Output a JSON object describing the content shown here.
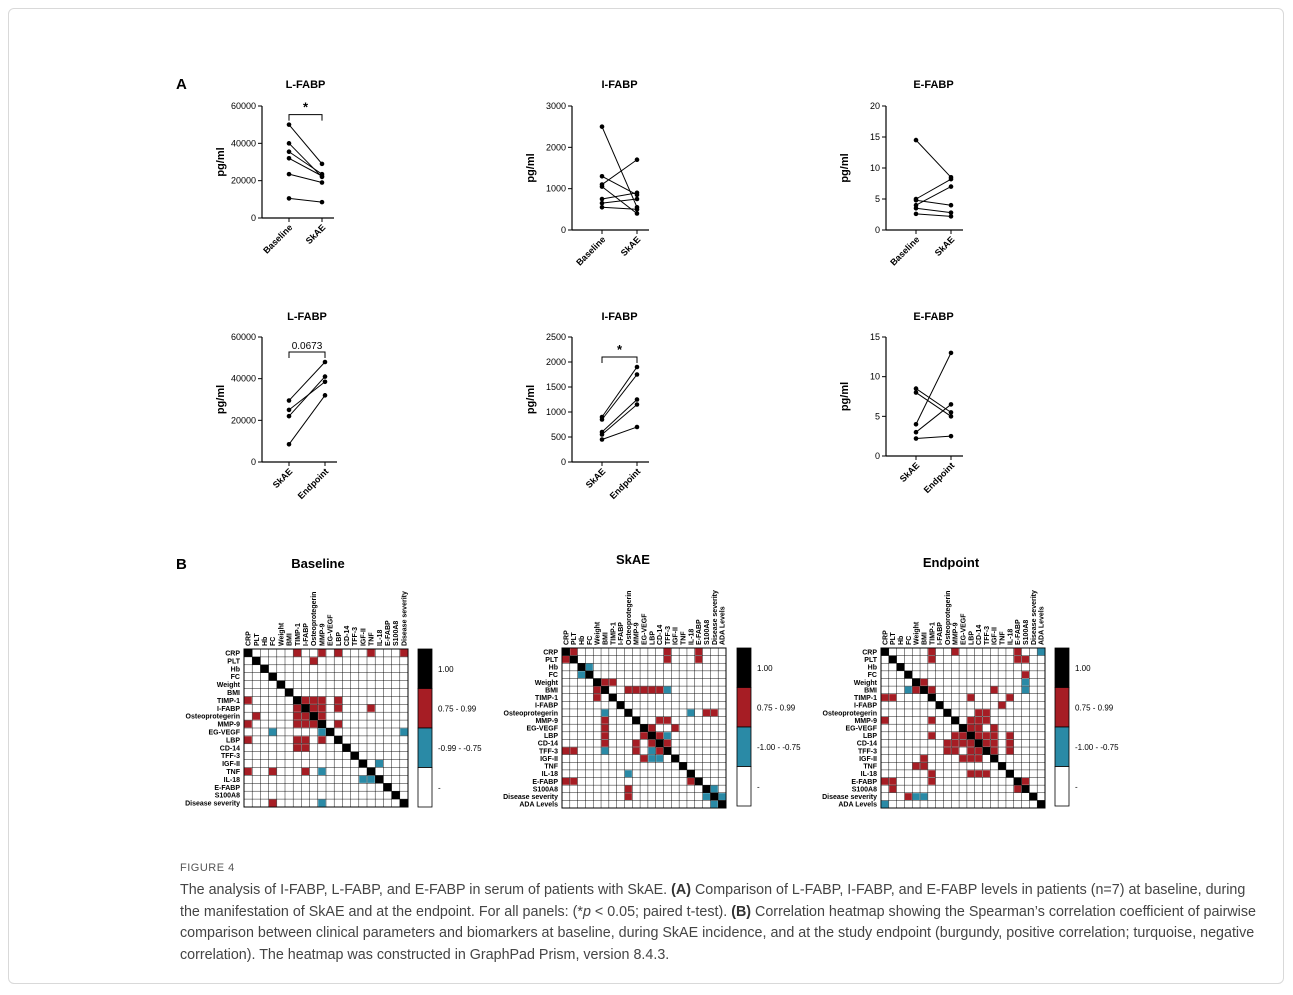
{
  "panel_labels": {
    "a": "A",
    "b": "B"
  },
  "colors": {
    "positive": "#a61d24",
    "negative": "#2a8aa6",
    "perfect": "#000000",
    "none": "#ffffff"
  },
  "chart_data": [
    {
      "type": "line",
      "title": "L-FABP",
      "ylabel": "pg/ml",
      "categories": [
        "Baseline",
        "SkAE"
      ],
      "ylim": [
        0,
        60000
      ],
      "yticks": [
        0,
        20000,
        40000,
        60000
      ],
      "sig": "*",
      "pairs": [
        [
          50000,
          29000
        ],
        [
          40000,
          22000
        ],
        [
          35500,
          23500
        ],
        [
          32000,
          22500
        ],
        [
          23500,
          19000
        ],
        [
          10500,
          8500
        ]
      ]
    },
    {
      "type": "line",
      "title": "I-FABP",
      "ylabel": "pg/ml",
      "categories": [
        "Baseline",
        "SkAE"
      ],
      "ylim": [
        0,
        3000
      ],
      "yticks": [
        0,
        1000,
        2000,
        3000
      ],
      "pairs": [
        [
          2500,
          550
        ],
        [
          1300,
          850
        ],
        [
          1100,
          1700
        ],
        [
          1050,
          400
        ],
        [
          750,
          900
        ],
        [
          650,
          750
        ],
        [
          550,
          500
        ]
      ]
    },
    {
      "type": "line",
      "title": "E-FABP",
      "ylabel": "pg/ml",
      "categories": [
        "Baseline",
        "SkAE"
      ],
      "ylim": [
        0,
        20
      ],
      "yticks": [
        0,
        5,
        10,
        15,
        20
      ],
      "pairs": [
        [
          14.5,
          8.5
        ],
        [
          5,
          8.2
        ],
        [
          4.8,
          4
        ],
        [
          4,
          7
        ],
        [
          3.5,
          2.8
        ],
        [
          2.6,
          2.2
        ]
      ]
    },
    {
      "type": "line",
      "title": "L-FABP",
      "ylabel": "pg/ml",
      "categories": [
        "SkAE",
        "Endpoint"
      ],
      "ylim": [
        0,
        60000
      ],
      "yticks": [
        0,
        20000,
        40000,
        60000
      ],
      "sig": "0.0673",
      "pairs": [
        [
          29500,
          48000
        ],
        [
          25000,
          38500
        ],
        [
          22000,
          41000
        ],
        [
          8500,
          32000
        ]
      ]
    },
    {
      "type": "line",
      "title": "I-FABP",
      "ylabel": "pg/ml",
      "categories": [
        "SkAE",
        "Endpoint"
      ],
      "ylim": [
        0,
        2500
      ],
      "yticks": [
        0,
        500,
        1000,
        1500,
        2000,
        2500
      ],
      "sig": "*",
      "pairs": [
        [
          900,
          1900
        ],
        [
          850,
          1750
        ],
        [
          600,
          1250
        ],
        [
          550,
          1150
        ],
        [
          450,
          700
        ]
      ]
    },
    {
      "type": "line",
      "title": "E-FABP",
      "ylabel": "pg/ml",
      "categories": [
        "SkAE",
        "Endpoint"
      ],
      "ylim": [
        0,
        15
      ],
      "yticks": [
        0,
        5,
        10,
        15
      ],
      "pairs": [
        [
          8.5,
          5.5
        ],
        [
          8,
          5
        ],
        [
          4,
          13
        ],
        [
          3,
          6.5
        ],
        [
          2.2,
          2.5
        ]
      ]
    },
    {
      "type": "heatmap",
      "title": "Baseline",
      "labels": [
        "CRP",
        "PLT",
        "Hb",
        "FC",
        "Weight",
        "BMI",
        "TIMP-1",
        "I-FABP",
        "Osteoprotegerin",
        "MMP-9",
        "EG-VEGF",
        "LBP",
        "CD-14",
        "TFF-3",
        "IGF-II",
        "TNF",
        "IL-18",
        "E-FABP",
        "S100A8",
        "Disease severity"
      ],
      "legend": [
        "1.00",
        "0.75 - 0.99",
        "-0.99 - -0.75",
        "-"
      ],
      "cells": [
        [
          0,
          6,
          1
        ],
        [
          0,
          9,
          1
        ],
        [
          0,
          11,
          1
        ],
        [
          0,
          15,
          1
        ],
        [
          0,
          19,
          1
        ],
        [
          1,
          8,
          1
        ],
        [
          6,
          0,
          1
        ],
        [
          6,
          7,
          1
        ],
        [
          6,
          8,
          1
        ],
        [
          6,
          9,
          1
        ],
        [
          6,
          11,
          1
        ],
        [
          7,
          6,
          1
        ],
        [
          7,
          8,
          1
        ],
        [
          7,
          9,
          1
        ],
        [
          7,
          11,
          1
        ],
        [
          7,
          15,
          1
        ],
        [
          8,
          1,
          1
        ],
        [
          8,
          6,
          1
        ],
        [
          8,
          7,
          1
        ],
        [
          8,
          9,
          1
        ],
        [
          9,
          0,
          1
        ],
        [
          9,
          6,
          1
        ],
        [
          9,
          7,
          1
        ],
        [
          9,
          8,
          1
        ],
        [
          9,
          11,
          1
        ],
        [
          10,
          3,
          -1
        ],
        [
          10,
          9,
          -1
        ],
        [
          10,
          19,
          -1
        ],
        [
          11,
          0,
          1
        ],
        [
          11,
          6,
          1
        ],
        [
          11,
          7,
          1
        ],
        [
          11,
          9,
          1
        ],
        [
          12,
          6,
          1
        ],
        [
          12,
          7,
          1
        ],
        [
          14,
          16,
          -1
        ],
        [
          15,
          0,
          1
        ],
        [
          15,
          3,
          1
        ],
        [
          15,
          7,
          1
        ],
        [
          15,
          9,
          -1
        ],
        [
          16,
          14,
          -1
        ],
        [
          16,
          15,
          -1
        ],
        [
          19,
          3,
          1
        ],
        [
          19,
          9,
          -1
        ]
      ]
    },
    {
      "type": "heatmap",
      "title": "SkAE",
      "labels": [
        "CRP",
        "PLT",
        "Hb",
        "FC",
        "Weight",
        "BMI",
        "TIMP-1",
        "I-FABP",
        "Osteoprotegerin",
        "MMP-9",
        "EG-VEGF",
        "LBP",
        "CD-14",
        "TFF-3",
        "IGF-II",
        "TNF",
        "IL-18",
        "E-FABP",
        "S100A8",
        "Disease severity",
        "ADA Levels"
      ],
      "legend": [
        "1.00",
        "0.75 - 0.99",
        "-1.00 - -0.75",
        "-"
      ],
      "cells": [
        [
          0,
          1,
          1
        ],
        [
          0,
          13,
          1
        ],
        [
          0,
          17,
          1
        ],
        [
          1,
          0,
          1
        ],
        [
          1,
          13,
          1
        ],
        [
          1,
          17,
          1
        ],
        [
          2,
          3,
          -1
        ],
        [
          3,
          2,
          -1
        ],
        [
          4,
          5,
          1
        ],
        [
          4,
          6,
          1
        ],
        [
          5,
          4,
          1
        ],
        [
          5,
          8,
          1
        ],
        [
          5,
          9,
          1
        ],
        [
          5,
          10,
          1
        ],
        [
          5,
          11,
          1
        ],
        [
          5,
          12,
          1
        ],
        [
          5,
          13,
          -1
        ],
        [
          6,
          4,
          1
        ],
        [
          8,
          5,
          -1
        ],
        [
          8,
          16,
          -1
        ],
        [
          8,
          18,
          1
        ],
        [
          8,
          19,
          1
        ],
        [
          9,
          5,
          1
        ],
        [
          9,
          12,
          1
        ],
        [
          9,
          13,
          1
        ],
        [
          10,
          5,
          1
        ],
        [
          10,
          11,
          1
        ],
        [
          10,
          14,
          1
        ],
        [
          11,
          5,
          1
        ],
        [
          11,
          10,
          1
        ],
        [
          11,
          12,
          1
        ],
        [
          11,
          13,
          -1
        ],
        [
          12,
          5,
          1
        ],
        [
          12,
          9,
          1
        ],
        [
          12,
          11,
          1
        ],
        [
          12,
          13,
          1
        ],
        [
          13,
          0,
          1
        ],
        [
          13,
          1,
          1
        ],
        [
          13,
          5,
          -1
        ],
        [
          13,
          9,
          1
        ],
        [
          13,
          11,
          -1
        ],
        [
          13,
          12,
          1
        ],
        [
          14,
          10,
          1
        ],
        [
          14,
          11,
          -1
        ],
        [
          14,
          12,
          -1
        ],
        [
          16,
          8,
          -1
        ],
        [
          17,
          0,
          1
        ],
        [
          17,
          1,
          1
        ],
        [
          17,
          16,
          1
        ],
        [
          18,
          8,
          1
        ],
        [
          18,
          19,
          -1
        ],
        [
          19,
          8,
          1
        ],
        [
          19,
          18,
          -1
        ],
        [
          19,
          20,
          -1
        ],
        [
          20,
          19,
          -1
        ]
      ]
    },
    {
      "type": "heatmap",
      "title": "Endpoint",
      "labels": [
        "CRP",
        "PLT",
        "Hb",
        "FC",
        "Weight",
        "BMI",
        "TIMP-1",
        "I-FABP",
        "Osteoprotegerin",
        "MMP-9",
        "EG-VEGF",
        "LBP",
        "CD-14",
        "TFF-3",
        "IGF-II",
        "TNF",
        "IL-18",
        "E-FABP",
        "S100A8",
        "Disease severity",
        "ADA Levels"
      ],
      "legend": [
        "1.00",
        "0.75 - 0.99",
        "-1.00 - -0.75",
        "-"
      ],
      "cells": [
        [
          0,
          6,
          1
        ],
        [
          0,
          9,
          1
        ],
        [
          0,
          17,
          1
        ],
        [
          0,
          20,
          -1
        ],
        [
          1,
          6,
          1
        ],
        [
          1,
          17,
          1
        ],
        [
          1,
          18,
          1
        ],
        [
          3,
          18,
          1
        ],
        [
          4,
          5,
          1
        ],
        [
          4,
          18,
          -1
        ],
        [
          5,
          3,
          -1
        ],
        [
          5,
          4,
          1
        ],
        [
          5,
          6,
          1
        ],
        [
          5,
          14,
          1
        ],
        [
          5,
          18,
          -1
        ],
        [
          6,
          0,
          1
        ],
        [
          6,
          1,
          1
        ],
        [
          6,
          11,
          1
        ],
        [
          6,
          16,
          1
        ],
        [
          7,
          15,
          1
        ],
        [
          8,
          12,
          1
        ],
        [
          8,
          13,
          1
        ],
        [
          9,
          0,
          1
        ],
        [
          9,
          6,
          1
        ],
        [
          9,
          11,
          1
        ],
        [
          9,
          12,
          1
        ],
        [
          9,
          13,
          1
        ],
        [
          10,
          11,
          1
        ],
        [
          10,
          12,
          1
        ],
        [
          10,
          14,
          1
        ],
        [
          11,
          6,
          1
        ],
        [
          11,
          9,
          1
        ],
        [
          11,
          10,
          1
        ],
        [
          11,
          12,
          1
        ],
        [
          11,
          13,
          1
        ],
        [
          11,
          14,
          1
        ],
        [
          11,
          16,
          1
        ],
        [
          12,
          8,
          1
        ],
        [
          12,
          9,
          1
        ],
        [
          12,
          10,
          1
        ],
        [
          12,
          11,
          1
        ],
        [
          12,
          13,
          1
        ],
        [
          12,
          14,
          1
        ],
        [
          12,
          16,
          1
        ],
        [
          13,
          8,
          1
        ],
        [
          13,
          9,
          1
        ],
        [
          13,
          11,
          1
        ],
        [
          13,
          12,
          1
        ],
        [
          13,
          14,
          1
        ],
        [
          13,
          16,
          1
        ],
        [
          14,
          5,
          1
        ],
        [
          14,
          10,
          1
        ],
        [
          14,
          11,
          1
        ],
        [
          14,
          12,
          1
        ],
        [
          15,
          4,
          1
        ],
        [
          15,
          5,
          1
        ],
        [
          16,
          6,
          1
        ],
        [
          16,
          11,
          1
        ],
        [
          16,
          12,
          1
        ],
        [
          16,
          13,
          1
        ],
        [
          17,
          0,
          1
        ],
        [
          17,
          1,
          1
        ],
        [
          17,
          6,
          1
        ],
        [
          17,
          18,
          1
        ],
        [
          18,
          1,
          1
        ],
        [
          18,
          17,
          1
        ],
        [
          19,
          3,
          1
        ],
        [
          19,
          4,
          -1
        ],
        [
          19,
          5,
          -1
        ],
        [
          20,
          0,
          -1
        ]
      ]
    }
  ],
  "caption": {
    "figure_label": "FIGURE 4",
    "title": "The analysis of I-FABP, L-FABP, and E-FABP in serum of patients with SkAE.",
    "a_label": "(A)",
    "a_text": "Comparison of L-FABP, I-FABP, and E-FABP levels in patients (n=7) at baseline, during the manifestation of SkAE and at the endpoint. For all panels: (*",
    "p_symbol": "p",
    "a_text2": " < 0.05; paired t-test).",
    "b_label": "(B)",
    "b_text": "Correlation heatmap showing the Spearman’s correlation coefficient of pairwise comparison between clinical parameters and biomarkers at baseline, during SkAE incidence, and at the study endpoint (burgundy, positive correlation; turquoise, negative correlation). The heatmap was constructed in GraphPad Prism, version 8.4.3."
  }
}
